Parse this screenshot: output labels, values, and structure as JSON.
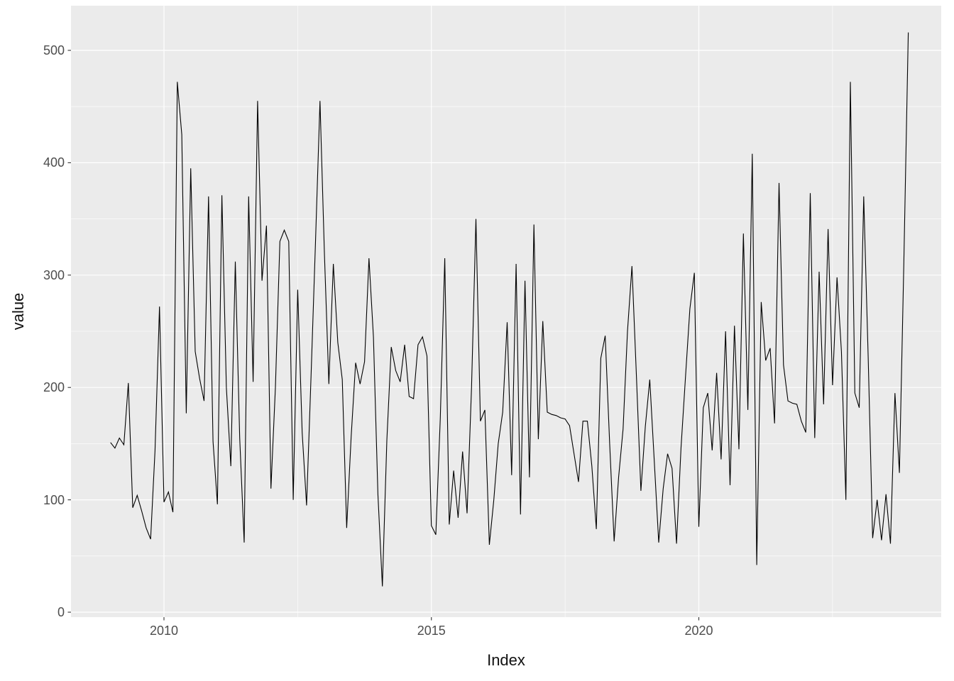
{
  "chart_data": {
    "type": "line",
    "title": "",
    "xlabel": "Index",
    "ylabel": "value",
    "legend": "none",
    "grid": "on",
    "panel_bg": "#ebebeb",
    "grid_color": "#ffffff",
    "line_color": "#000000",
    "tick_label_color": "#4d4d4d",
    "axis_title_color": "#111111",
    "x_start_year": 2009.0,
    "x_step_years": 0.0833333,
    "xlim": [
      2008.25,
      2024.66
    ],
    "ylim": [
      -2,
      541
    ],
    "x_ticks": [
      {
        "label": "2010",
        "year": 2010
      },
      {
        "label": "2015",
        "year": 2015
      },
      {
        "label": "2020",
        "year": 2020
      }
    ],
    "y_ticks": [
      {
        "label": "0",
        "value": 0
      },
      {
        "label": "100",
        "value": 100
      },
      {
        "label": "200",
        "value": 200
      },
      {
        "label": "300",
        "value": 300
      },
      {
        "label": "400",
        "value": 400
      },
      {
        "label": "500",
        "value": 500
      }
    ],
    "x_minor_gridlines": [
      2012.5,
      2017.5,
      2022.5
    ],
    "y_minor_gridlines": [
      50,
      150,
      250,
      350,
      450
    ],
    "series": [
      {
        "name": "value",
        "values": [
          151,
          146,
          155,
          149,
          204,
          93,
          104,
          90,
          75,
          65,
          144,
          272,
          98,
          107,
          89,
          472,
          425,
          177,
          395,
          232,
          208,
          188,
          370,
          152,
          96,
          371,
          200,
          130,
          312,
          155,
          62,
          370,
          205,
          455,
          295,
          344,
          110,
          200,
          330,
          340,
          330,
          100,
          287,
          160,
          95,
          210,
          330,
          455,
          320,
          203,
          310,
          240,
          207,
          75,
          156,
          222,
          203,
          223,
          315,
          245,
          105,
          23,
          153,
          236,
          215,
          205,
          238,
          192,
          190,
          238,
          245,
          228,
          77,
          69,
          173,
          315,
          78,
          126,
          84,
          143,
          88,
          200,
          350,
          170,
          180,
          60,
          100,
          150,
          178,
          258,
          122,
          310,
          87,
          295,
          120,
          345,
          154,
          259,
          178,
          176,
          175,
          173,
          172,
          166,
          141,
          116,
          170,
          170,
          130,
          74,
          226,
          246,
          150,
          63,
          120,
          163,
          250,
          308,
          210,
          108,
          165,
          207,
          135,
          62,
          110,
          141,
          128,
          61,
          146,
          209,
          270,
          302,
          76,
          182,
          195,
          144,
          213,
          136,
          250,
          113,
          255,
          145,
          337,
          180,
          408,
          42,
          276,
          224,
          235,
          168,
          382,
          220,
          188,
          186,
          185,
          170,
          160,
          373,
          155,
          303,
          185,
          341,
          202,
          298,
          232,
          100,
          472,
          195,
          182,
          370,
          227,
          66,
          100,
          64,
          105,
          61,
          195,
          124,
          310,
          516
        ]
      }
    ]
  }
}
